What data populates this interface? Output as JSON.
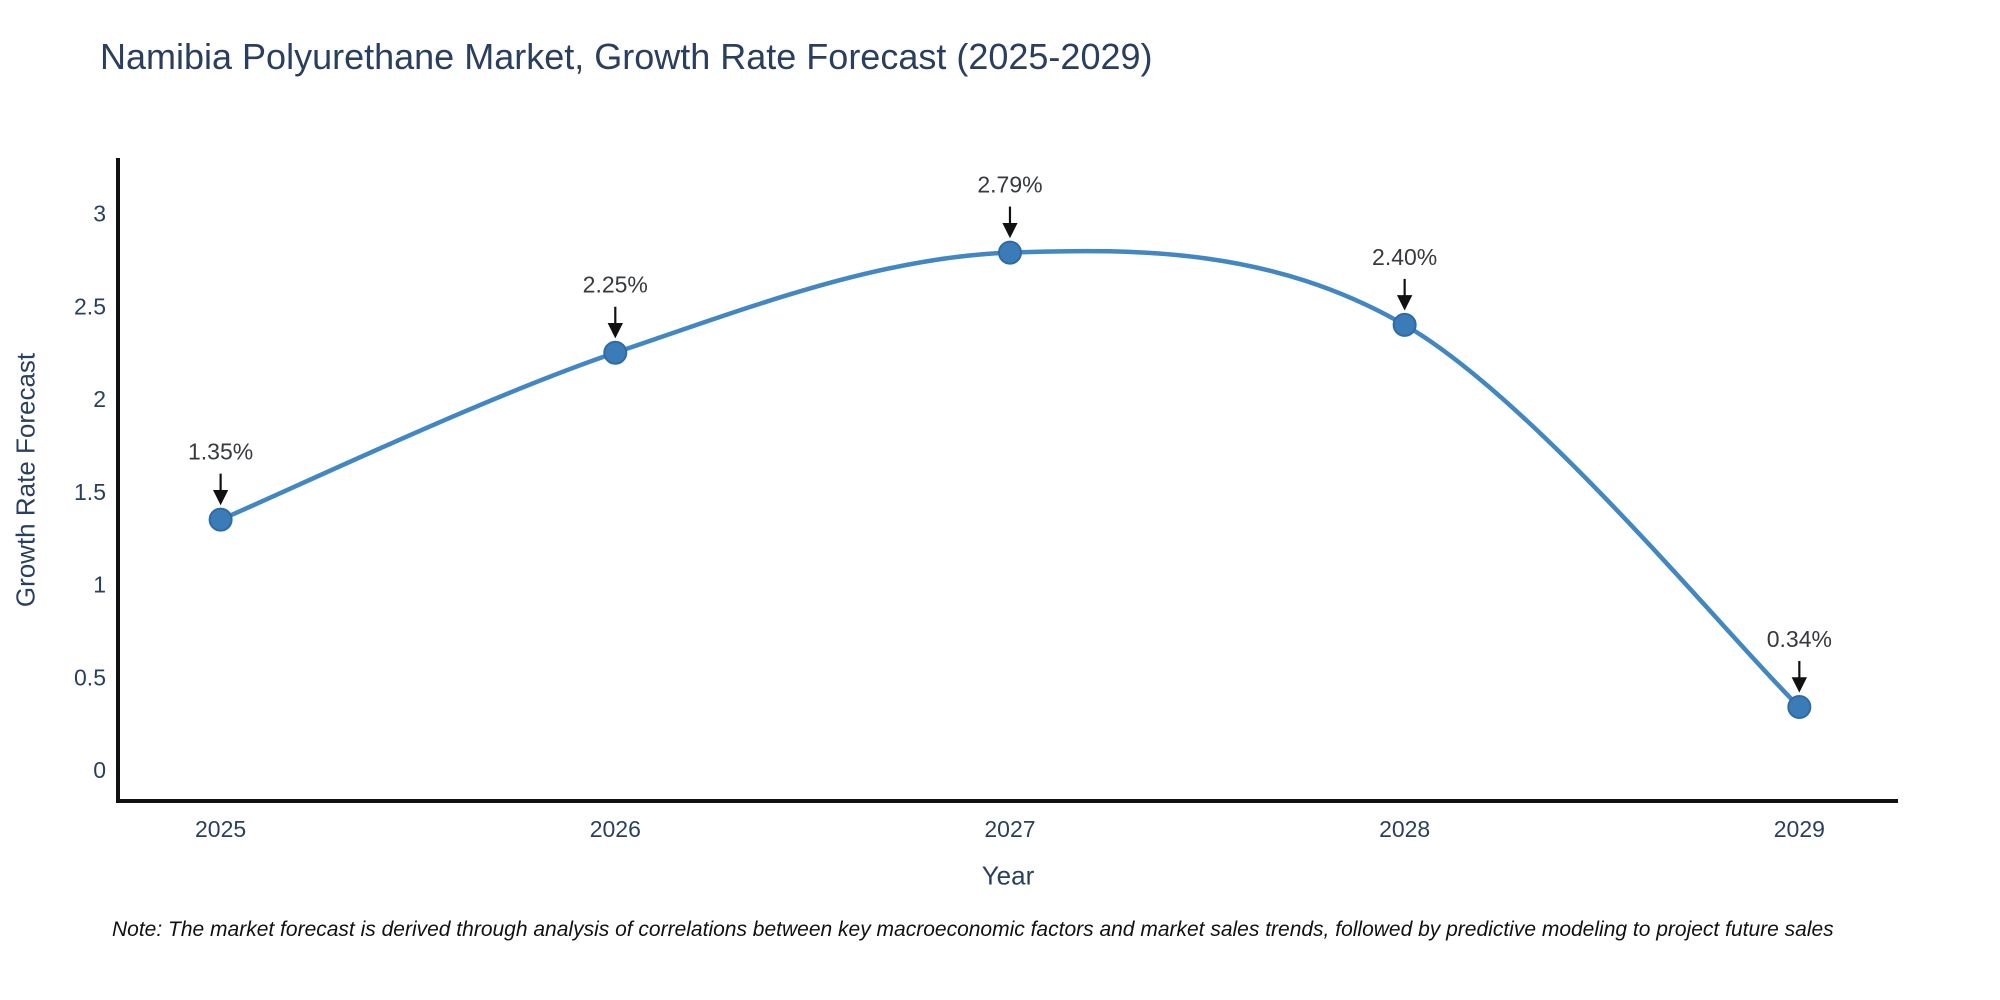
{
  "title": "Namibia Polyurethane Market, Growth Rate Forecast (2025-2029)",
  "note": "Note: The market forecast is derived through analysis of correlations between key macroeconomic factors and market sales trends, followed by predictive modeling to project future sales",
  "chart_data": {
    "type": "line",
    "line_shape": "spline",
    "title": "Namibia Polyurethane Market, Growth Rate Forecast (2025-2029)",
    "xlabel": "Year",
    "ylabel": "Growth Rate Forecast",
    "x": [
      2025,
      2026,
      2027,
      2028,
      2029
    ],
    "values": [
      1.35,
      2.25,
      2.79,
      2.4,
      0.34
    ],
    "point_labels": [
      "1.35%",
      "2.25%",
      "2.79%",
      "2.40%",
      "0.34%"
    ],
    "x_tick_labels": [
      "2025",
      "2026",
      "2027",
      "2028",
      "2029"
    ],
    "y_tick_values": [
      0,
      0.5,
      1,
      1.5,
      2,
      2.5,
      3
    ],
    "y_tick_labels": [
      "0",
      "0.5",
      "1",
      "1.5",
      "2",
      "2.5",
      "3"
    ],
    "xlim": [
      2024.74,
      2029.25
    ],
    "ylim": [
      -0.167,
      3.3
    ],
    "grid": false,
    "legend": "none",
    "annotations_have_arrows": true
  },
  "colors": {
    "line": "#4286c2",
    "marker_fill": "#3b7cb8",
    "marker_edge": "#2f6ba3",
    "axis_line": "#111111",
    "arrow": "#111111",
    "tick_text": "#2a3f5f",
    "title_text": "#2a3f5f",
    "annotation_text": "#36393d",
    "background": "#ffffff"
  }
}
